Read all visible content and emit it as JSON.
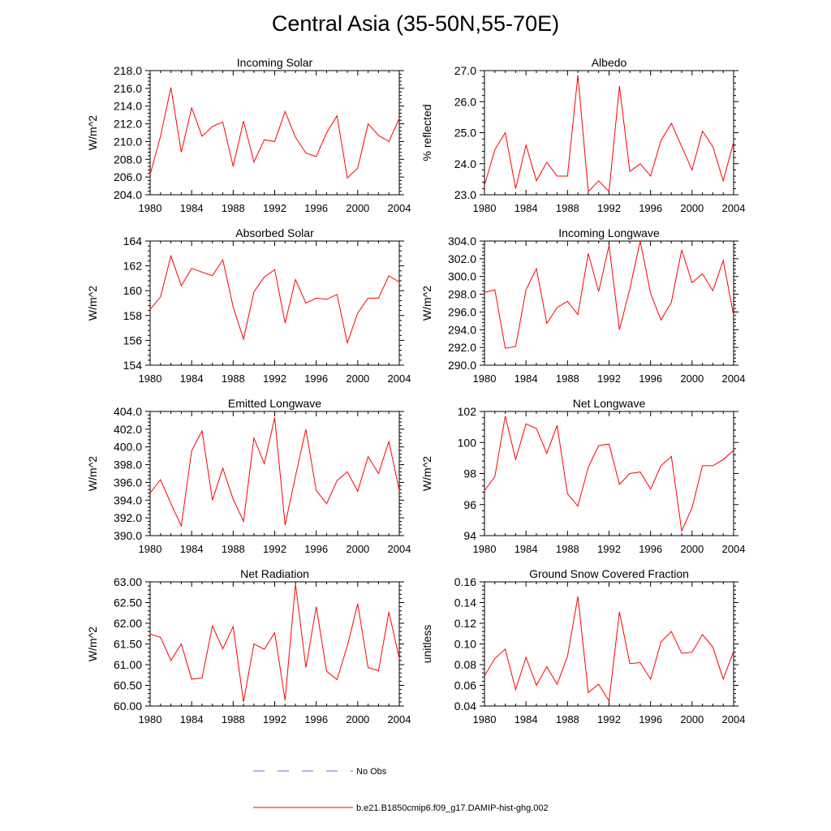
{
  "title": "Central Asia (35-50N,55-70E)",
  "legend": {
    "obs_label": "No Obs",
    "obs_color": "#6a6ad8",
    "model_label": "b.e21.B1850cmip6.f09_g17.DAMIP-hist-ghg.002",
    "model_color": "#ff0000"
  },
  "chart_data": [
    {
      "type": "line",
      "title": "Incoming Solar",
      "ylabel": "W/m^2",
      "xlim": [
        1980,
        2004
      ],
      "ylim": [
        204,
        218
      ],
      "yticks": [
        "204.0",
        "206.0",
        "208.0",
        "210.0",
        "212.0",
        "214.0",
        "216.0",
        "218.0"
      ],
      "xticks": [
        "1980",
        "1984",
        "1988",
        "1992",
        "1996",
        "2000",
        "2004"
      ],
      "series": [
        {
          "x": [
            1980,
            1981,
            1982,
            1983,
            1984,
            1985,
            1986,
            1987,
            1988,
            1989,
            1990,
            1991,
            1992,
            1993,
            1994,
            1995,
            1996,
            1997,
            1998,
            1999,
            2000,
            2001,
            2002,
            2003,
            2004
          ],
          "values": [
            206.3,
            210.6,
            216.1,
            208.8,
            213.8,
            210.6,
            211.7,
            212.2,
            207.2,
            212.3,
            207.7,
            210.2,
            210.0,
            213.4,
            210.5,
            208.7,
            208.3,
            211.0,
            212.9,
            205.9,
            207.0,
            212.0,
            210.7,
            210.0,
            212.6
          ]
        }
      ]
    },
    {
      "type": "line",
      "title": "Albedo",
      "ylabel": "% reflected",
      "xlim": [
        1980,
        2004
      ],
      "ylim": [
        23,
        27
      ],
      "yticks": [
        "23.0",
        "24.0",
        "25.0",
        "26.0",
        "27.0"
      ],
      "xticks": [
        "1980",
        "1984",
        "1988",
        "1992",
        "1996",
        "2000",
        "2004"
      ],
      "series": [
        {
          "x": [
            1980,
            1981,
            1982,
            1983,
            1984,
            1985,
            1986,
            1987,
            1988,
            1989,
            1990,
            1991,
            1992,
            1993,
            1994,
            1995,
            1996,
            1997,
            1998,
            1999,
            2000,
            2001,
            2002,
            2003,
            2004
          ],
          "values": [
            23.3,
            24.45,
            25.0,
            23.2,
            24.6,
            23.45,
            24.05,
            23.6,
            23.6,
            26.85,
            23.1,
            23.45,
            23.1,
            26.5,
            23.75,
            24.0,
            23.6,
            24.75,
            25.3,
            24.55,
            23.8,
            25.05,
            24.55,
            23.45,
            24.7
          ]
        }
      ]
    },
    {
      "type": "line",
      "title": "Absorbed Solar",
      "ylabel": "W/m^2",
      "xlim": [
        1980,
        2004
      ],
      "ylim": [
        154,
        164
      ],
      "yticks": [
        "154",
        "156",
        "158",
        "160",
        "162",
        "164"
      ],
      "xticks": [
        "1980",
        "1984",
        "1988",
        "1992",
        "1996",
        "2000",
        "2004"
      ],
      "series": [
        {
          "x": [
            1980,
            1981,
            1982,
            1983,
            1984,
            1985,
            1986,
            1987,
            1988,
            1989,
            1990,
            1991,
            1992,
            1993,
            1994,
            1995,
            1996,
            1997,
            1998,
            1999,
            2000,
            2001,
            2002,
            2003,
            2004
          ],
          "values": [
            158.5,
            159.5,
            162.8,
            160.4,
            161.8,
            161.5,
            161.2,
            162.5,
            158.7,
            156.1,
            159.9,
            161.1,
            161.7,
            157.4,
            160.9,
            159.0,
            159.4,
            159.3,
            159.7,
            155.8,
            158.2,
            159.4,
            159.4,
            161.2,
            160.7
          ]
        }
      ]
    },
    {
      "type": "line",
      "title": "Incoming Longwave",
      "ylabel": "W/m^2",
      "xlim": [
        1980,
        2004
      ],
      "ylim": [
        290,
        304
      ],
      "yticks": [
        "290.0",
        "292.0",
        "294.0",
        "296.0",
        "298.0",
        "300.0",
        "302.0",
        "304.0"
      ],
      "xticks": [
        "1980",
        "1984",
        "1988",
        "1992",
        "1996",
        "2000",
        "2004"
      ],
      "series": [
        {
          "x": [
            1980,
            1981,
            1982,
            1983,
            1984,
            1985,
            1986,
            1987,
            1988,
            1989,
            1990,
            1991,
            1992,
            1993,
            1994,
            1995,
            1996,
            1997,
            1998,
            1999,
            2000,
            2001,
            2002,
            2003,
            2004
          ],
          "values": [
            298.2,
            298.5,
            291.9,
            292.1,
            298.5,
            300.9,
            294.7,
            296.5,
            297.2,
            295.7,
            302.6,
            298.3,
            303.5,
            294.0,
            298.6,
            304.0,
            298.1,
            295.1,
            297.1,
            303.0,
            299.3,
            300.3,
            298.4,
            301.8,
            295.6
          ]
        }
      ]
    },
    {
      "type": "line",
      "title": "Emitted Longwave",
      "ylabel": "W/m^2",
      "xlim": [
        1980,
        2004
      ],
      "ylim": [
        390,
        404
      ],
      "yticks": [
        "390.0",
        "392.0",
        "394.0",
        "396.0",
        "398.0",
        "400.0",
        "402.0",
        "404.0"
      ],
      "xticks": [
        "1980",
        "1984",
        "1988",
        "1992",
        "1996",
        "2000",
        "2004"
      ],
      "series": [
        {
          "x": [
            1980,
            1981,
            1982,
            1983,
            1984,
            1985,
            1986,
            1987,
            1988,
            1989,
            1990,
            1991,
            1992,
            1993,
            1994,
            1995,
            1996,
            1997,
            1998,
            1999,
            2000,
            2001,
            2002,
            2003,
            2004
          ],
          "values": [
            394.8,
            396.3,
            393.6,
            391.1,
            399.6,
            401.8,
            394.0,
            397.6,
            394.1,
            391.6,
            401.0,
            398.1,
            403.3,
            391.2,
            396.7,
            402.0,
            395.1,
            393.6,
            396.2,
            397.2,
            395.0,
            398.9,
            397.0,
            400.6,
            395.1
          ]
        }
      ]
    },
    {
      "type": "line",
      "title": "Net Longwave",
      "ylabel": "W/m^2",
      "xlim": [
        1980,
        2004
      ],
      "ylim": [
        94,
        102
      ],
      "yticks": [
        "94",
        "96",
        "98",
        "100",
        "102"
      ],
      "xticks": [
        "1980",
        "1984",
        "1988",
        "1992",
        "1996",
        "2000",
        "2004"
      ],
      "series": [
        {
          "x": [
            1980,
            1981,
            1982,
            1983,
            1984,
            1985,
            1986,
            1987,
            1988,
            1989,
            1990,
            1991,
            1992,
            1993,
            1994,
            1995,
            1996,
            1997,
            1998,
            1999,
            2000,
            2001,
            2002,
            2003,
            2004
          ],
          "values": [
            96.9,
            97.8,
            101.7,
            98.9,
            101.2,
            100.9,
            99.3,
            101.1,
            96.7,
            95.9,
            98.4,
            99.8,
            99.9,
            97.3,
            98.0,
            98.1,
            97.0,
            98.5,
            99.1,
            94.3,
            95.8,
            98.5,
            98.5,
            98.9,
            99.5
          ]
        }
      ]
    },
    {
      "type": "line",
      "title": "Net Radiation",
      "ylabel": "W/m^2",
      "xlim": [
        1980,
        2004
      ],
      "ylim": [
        60,
        63
      ],
      "yticks": [
        "60.00",
        "60.50",
        "61.00",
        "61.50",
        "62.00",
        "62.50",
        "63.00"
      ],
      "xticks": [
        "1980",
        "1984",
        "1988",
        "1992",
        "1996",
        "2000",
        "2004"
      ],
      "series": [
        {
          "x": [
            1980,
            1981,
            1982,
            1983,
            1984,
            1985,
            1986,
            1987,
            1988,
            1989,
            1990,
            1991,
            1992,
            1993,
            1994,
            1995,
            1996,
            1997,
            1998,
            1999,
            2000,
            2001,
            2002,
            2003,
            2004
          ],
          "values": [
            61.74,
            61.66,
            61.1,
            61.5,
            60.65,
            60.68,
            61.94,
            61.38,
            61.92,
            60.1,
            61.5,
            61.37,
            61.77,
            60.14,
            62.95,
            60.93,
            62.4,
            60.84,
            60.64,
            61.45,
            62.47,
            60.93,
            60.85,
            62.27,
            61.15
          ]
        }
      ]
    },
    {
      "type": "line",
      "title": "Ground Snow Covered Fraction",
      "ylabel": "unitless",
      "xlim": [
        1980,
        2004
      ],
      "ylim": [
        0.04,
        0.16
      ],
      "yticks": [
        "0.04",
        "0.06",
        "0.08",
        "0.10",
        "0.12",
        "0.14",
        "0.16"
      ],
      "xticks": [
        "1980",
        "1984",
        "1988",
        "1992",
        "1996",
        "2000",
        "2004"
      ],
      "series": [
        {
          "x": [
            1980,
            1981,
            1982,
            1983,
            1984,
            1985,
            1986,
            1987,
            1988,
            1989,
            1990,
            1991,
            1992,
            1993,
            1994,
            1995,
            1996,
            1997,
            1998,
            1999,
            2000,
            2001,
            2002,
            2003,
            2004
          ],
          "values": [
            0.069,
            0.086,
            0.095,
            0.056,
            0.087,
            0.06,
            0.078,
            0.061,
            0.088,
            0.146,
            0.053,
            0.061,
            0.045,
            0.131,
            0.081,
            0.082,
            0.066,
            0.102,
            0.112,
            0.091,
            0.092,
            0.109,
            0.097,
            0.066,
            0.093
          ]
        }
      ]
    }
  ]
}
